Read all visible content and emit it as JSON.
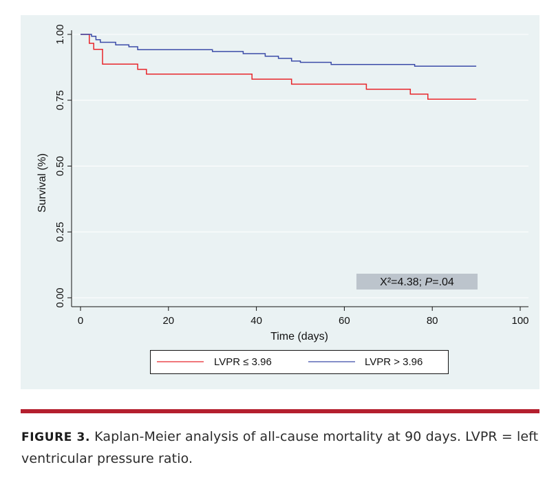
{
  "chart_data": {
    "type": "line",
    "subtype": "kaplan-meier-step",
    "title": "",
    "xlabel": "Time (days)",
    "ylabel": "Survival (%)",
    "xlim": [
      0,
      100
    ],
    "ylim": [
      0,
      1
    ],
    "x_ticks": [
      "0",
      "20",
      "40",
      "60",
      "80",
      "100"
    ],
    "y_ticks": [
      "0.00",
      "0.25",
      "0.50",
      "0.75",
      "1.00"
    ],
    "grid": "horizontal",
    "series": [
      {
        "name": "LVPR ≤ 3.96",
        "color": "#e8252a",
        "points": [
          [
            0,
            1.0
          ],
          [
            2,
            1.0
          ],
          [
            2,
            0.966
          ],
          [
            3,
            0.966
          ],
          [
            3,
            0.943
          ],
          [
            5,
            0.943
          ],
          [
            5,
            0.887
          ],
          [
            13,
            0.887
          ],
          [
            13,
            0.867
          ],
          [
            15,
            0.867
          ],
          [
            15,
            0.849
          ],
          [
            39,
            0.849
          ],
          [
            39,
            0.83
          ],
          [
            48,
            0.83
          ],
          [
            48,
            0.811
          ],
          [
            65,
            0.811
          ],
          [
            65,
            0.792
          ],
          [
            75,
            0.792
          ],
          [
            75,
            0.773
          ],
          [
            79,
            0.773
          ],
          [
            79,
            0.754
          ],
          [
            90,
            0.754
          ]
        ]
      },
      {
        "name": "LVPR > 3.96",
        "color": "#3b4ba8",
        "points": [
          [
            0,
            1.0
          ],
          [
            2.5,
            1.0
          ],
          [
            2.5,
            0.993
          ],
          [
            3.5,
            0.993
          ],
          [
            3.5,
            0.98
          ],
          [
            4.5,
            0.98
          ],
          [
            4.5,
            0.97
          ],
          [
            8,
            0.97
          ],
          [
            8,
            0.96
          ],
          [
            11,
            0.96
          ],
          [
            11,
            0.953
          ],
          [
            13,
            0.953
          ],
          [
            13,
            0.942
          ],
          [
            30,
            0.942
          ],
          [
            30,
            0.935
          ],
          [
            37,
            0.935
          ],
          [
            37,
            0.927
          ],
          [
            42,
            0.927
          ],
          [
            42,
            0.917
          ],
          [
            45,
            0.917
          ],
          [
            45,
            0.909
          ],
          [
            48,
            0.909
          ],
          [
            48,
            0.899
          ],
          [
            50,
            0.899
          ],
          [
            50,
            0.894
          ],
          [
            57,
            0.894
          ],
          [
            57,
            0.886
          ],
          [
            76,
            0.886
          ],
          [
            76,
            0.879
          ],
          [
            90,
            0.879
          ]
        ]
      }
    ],
    "annotation": {
      "text_prefix": "X²=4.38; ",
      "text_italic": "P",
      "text_suffix": "=.04"
    },
    "legend": {
      "position": "bottom"
    }
  },
  "caption": {
    "label": "FIGURE 3.",
    "text": " Kaplan-Meier analysis of all-cause mortality at 90 days. LVPR = left ventricular pressure ratio."
  },
  "colors": {
    "panel_bg": "#eaf2f3",
    "rule": "#b41f2e",
    "annotation_box": "#bcc4cc"
  }
}
